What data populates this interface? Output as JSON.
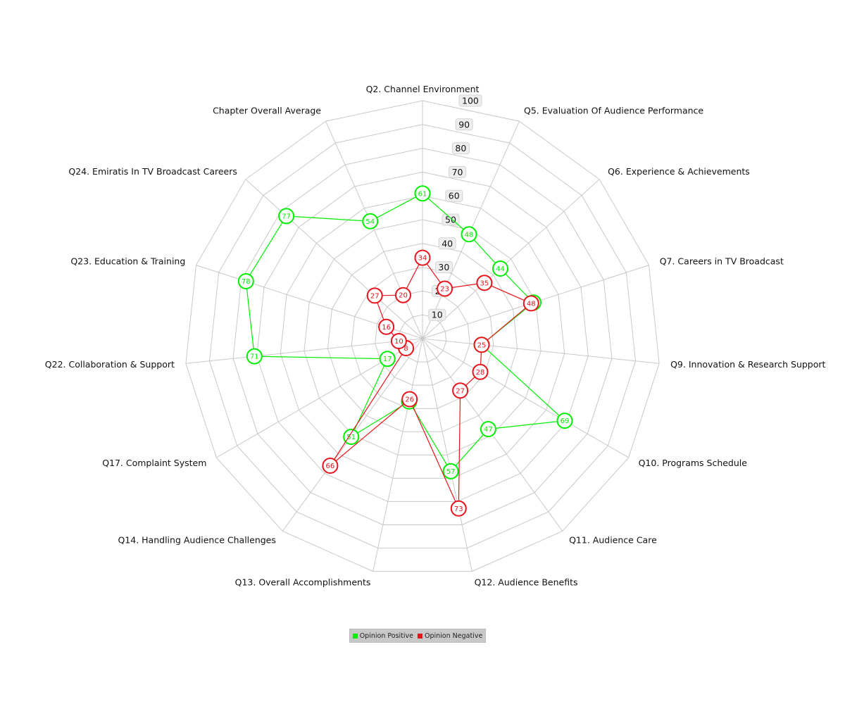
{
  "chart_data": {
    "type": "radar",
    "title": "",
    "categories": [
      "Q2. Channel Environment",
      "Q5. Evaluation Of Audience Performance",
      "Q6. Experience & Achievements",
      "Q7. Careers in TV Broadcast",
      "Q9. Innovation & Research Support",
      "Q10. Programs Schedule",
      "Q11. Audience Care",
      "Q12. Audience Benefits",
      "Q13. Overall Accomplishments",
      "Q14. Handling Audience Challenges",
      "Q17. Complaint System",
      "Q22. Collaboration & Support",
      "Q23. Education & Training",
      "Q24. Emiratis In TV Broadcast Careers",
      "Chapter Overall Average"
    ],
    "ticks": [
      "10",
      "20",
      "30",
      "40",
      "50",
      "60",
      "70",
      "80",
      "90",
      "100"
    ],
    "rlim": [
      0,
      100
    ],
    "grid": true,
    "legend_position": "bottom",
    "series": [
      {
        "name": "Opinion Positive",
        "color": "#00ee00",
        "values": [
          61,
          48,
          44,
          49,
          25,
          69,
          47,
          57,
          27,
          51,
          17,
          71,
          78,
          77,
          54
        ]
      },
      {
        "name": "Opinion Negative",
        "color": "#e8141b",
        "values": [
          34,
          23,
          35,
          48,
          25,
          28,
          27,
          73,
          26,
          66,
          8,
          10,
          16,
          27,
          20
        ]
      }
    ]
  }
}
